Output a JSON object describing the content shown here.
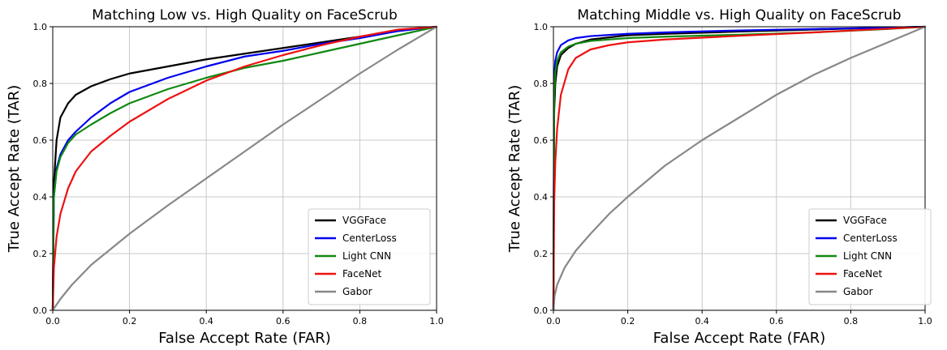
{
  "colors": {
    "VGGFace": "#000000",
    "CenterLoss": "#0000ee",
    "Light CNN": "#118811",
    "FaceNet": "#ee1111",
    "Gabor": "#888888",
    "grid": "#c8c8c8"
  },
  "chart_data": [
    {
      "type": "line",
      "title": "Matching Low vs. High Quality on FaceScrub",
      "xlabel": "False Accept Rate (FAR)",
      "ylabel": "True Accept Rate (TAR)",
      "xlim": [
        0,
        1
      ],
      "ylim": [
        0,
        1
      ],
      "xticks": [
        "0.0",
        "0.2",
        "0.4",
        "0.6",
        "0.8",
        "1.0"
      ],
      "yticks": [
        "0.0",
        "0.2",
        "0.4",
        "0.6",
        "0.8",
        "1.0"
      ],
      "grid": true,
      "legend": "bottom-right",
      "series": [
        {
          "name": "VGGFace",
          "x": [
            0,
            0.003,
            0.01,
            0.02,
            0.04,
            0.06,
            0.1,
            0.15,
            0.2,
            0.3,
            0.4,
            0.5,
            0.6,
            0.7,
            0.8,
            0.9,
            1.0
          ],
          "y": [
            0,
            0.45,
            0.6,
            0.68,
            0.73,
            0.76,
            0.79,
            0.815,
            0.835,
            0.86,
            0.885,
            0.905,
            0.925,
            0.945,
            0.965,
            0.985,
            1.0
          ]
        },
        {
          "name": "CenterLoss",
          "x": [
            0,
            0.003,
            0.01,
            0.02,
            0.04,
            0.06,
            0.1,
            0.15,
            0.2,
            0.3,
            0.4,
            0.5,
            0.6,
            0.7,
            0.8,
            0.9,
            1.0
          ],
          "y": [
            0,
            0.4,
            0.5,
            0.55,
            0.6,
            0.63,
            0.68,
            0.73,
            0.77,
            0.82,
            0.86,
            0.895,
            0.915,
            0.94,
            0.96,
            0.985,
            1.0
          ]
        },
        {
          "name": "Light CNN",
          "x": [
            0,
            0.003,
            0.01,
            0.02,
            0.04,
            0.06,
            0.1,
            0.15,
            0.2,
            0.3,
            0.4,
            0.5,
            0.6,
            0.7,
            0.8,
            0.9,
            1.0
          ],
          "y": [
            0,
            0.4,
            0.49,
            0.54,
            0.59,
            0.62,
            0.655,
            0.695,
            0.73,
            0.78,
            0.82,
            0.855,
            0.88,
            0.91,
            0.94,
            0.97,
            1.0
          ]
        },
        {
          "name": "FaceNet",
          "x": [
            0,
            0.003,
            0.01,
            0.02,
            0.04,
            0.06,
            0.1,
            0.15,
            0.2,
            0.3,
            0.4,
            0.5,
            0.6,
            0.7,
            0.8,
            0.9,
            1.0
          ],
          "y": [
            0,
            0.15,
            0.26,
            0.34,
            0.43,
            0.49,
            0.56,
            0.615,
            0.665,
            0.745,
            0.81,
            0.86,
            0.9,
            0.935,
            0.965,
            0.99,
            1.0
          ]
        },
        {
          "name": "Gabor",
          "x": [
            0,
            0.005,
            0.02,
            0.05,
            0.1,
            0.2,
            0.3,
            0.4,
            0.5,
            0.6,
            0.7,
            0.8,
            0.9,
            1.0
          ],
          "y": [
            0,
            0.01,
            0.04,
            0.09,
            0.16,
            0.27,
            0.37,
            0.465,
            0.56,
            0.655,
            0.745,
            0.835,
            0.92,
            1.0
          ]
        }
      ]
    },
    {
      "type": "line",
      "title": "Matching Middle vs. High Quality on FaceScrub",
      "xlabel": "False Accept Rate (FAR)",
      "ylabel": "True Accept Rate (TAR)",
      "xlim": [
        0,
        1
      ],
      "ylim": [
        0,
        1
      ],
      "xticks": [
        "0.0",
        "0.2",
        "0.4",
        "0.6",
        "0.8",
        "1.0"
      ],
      "yticks": [
        "0.0",
        "0.2",
        "0.4",
        "0.6",
        "0.8",
        "1.0"
      ],
      "grid": true,
      "legend": "bottom-right",
      "series": [
        {
          "name": "VGGFace",
          "x": [
            0,
            0.002,
            0.005,
            0.01,
            0.02,
            0.04,
            0.06,
            0.1,
            0.2,
            0.3,
            0.5,
            0.7,
            0.9,
            1.0
          ],
          "y": [
            0,
            0.7,
            0.8,
            0.86,
            0.9,
            0.925,
            0.94,
            0.955,
            0.97,
            0.975,
            0.983,
            0.99,
            0.997,
            1.0
          ]
        },
        {
          "name": "CenterLoss",
          "x": [
            0,
            0.002,
            0.005,
            0.01,
            0.02,
            0.04,
            0.06,
            0.1,
            0.2,
            0.3,
            0.5,
            0.7,
            0.9,
            1.0
          ],
          "y": [
            0,
            0.82,
            0.88,
            0.91,
            0.935,
            0.952,
            0.96,
            0.967,
            0.975,
            0.98,
            0.987,
            0.992,
            0.997,
            1.0
          ]
        },
        {
          "name": "Light CNN",
          "x": [
            0,
            0.002,
            0.005,
            0.01,
            0.02,
            0.04,
            0.06,
            0.1,
            0.2,
            0.3,
            0.5,
            0.7,
            0.9,
            1.0
          ],
          "y": [
            0,
            0.76,
            0.84,
            0.88,
            0.91,
            0.93,
            0.94,
            0.95,
            0.96,
            0.965,
            0.972,
            0.98,
            0.992,
            1.0
          ]
        },
        {
          "name": "FaceNet",
          "x": [
            0,
            0.002,
            0.005,
            0.01,
            0.02,
            0.04,
            0.06,
            0.1,
            0.15,
            0.2,
            0.3,
            0.5,
            0.7,
            0.9,
            1.0
          ],
          "y": [
            0,
            0.38,
            0.52,
            0.64,
            0.76,
            0.85,
            0.89,
            0.92,
            0.935,
            0.945,
            0.955,
            0.968,
            0.98,
            0.993,
            1.0
          ]
        },
        {
          "name": "Gabor",
          "x": [
            0,
            0.003,
            0.01,
            0.03,
            0.06,
            0.1,
            0.15,
            0.2,
            0.3,
            0.4,
            0.5,
            0.6,
            0.7,
            0.8,
            0.9,
            1.0
          ],
          "y": [
            0,
            0.05,
            0.09,
            0.15,
            0.21,
            0.27,
            0.34,
            0.4,
            0.51,
            0.6,
            0.68,
            0.76,
            0.83,
            0.89,
            0.945,
            1.0
          ]
        }
      ]
    }
  ]
}
